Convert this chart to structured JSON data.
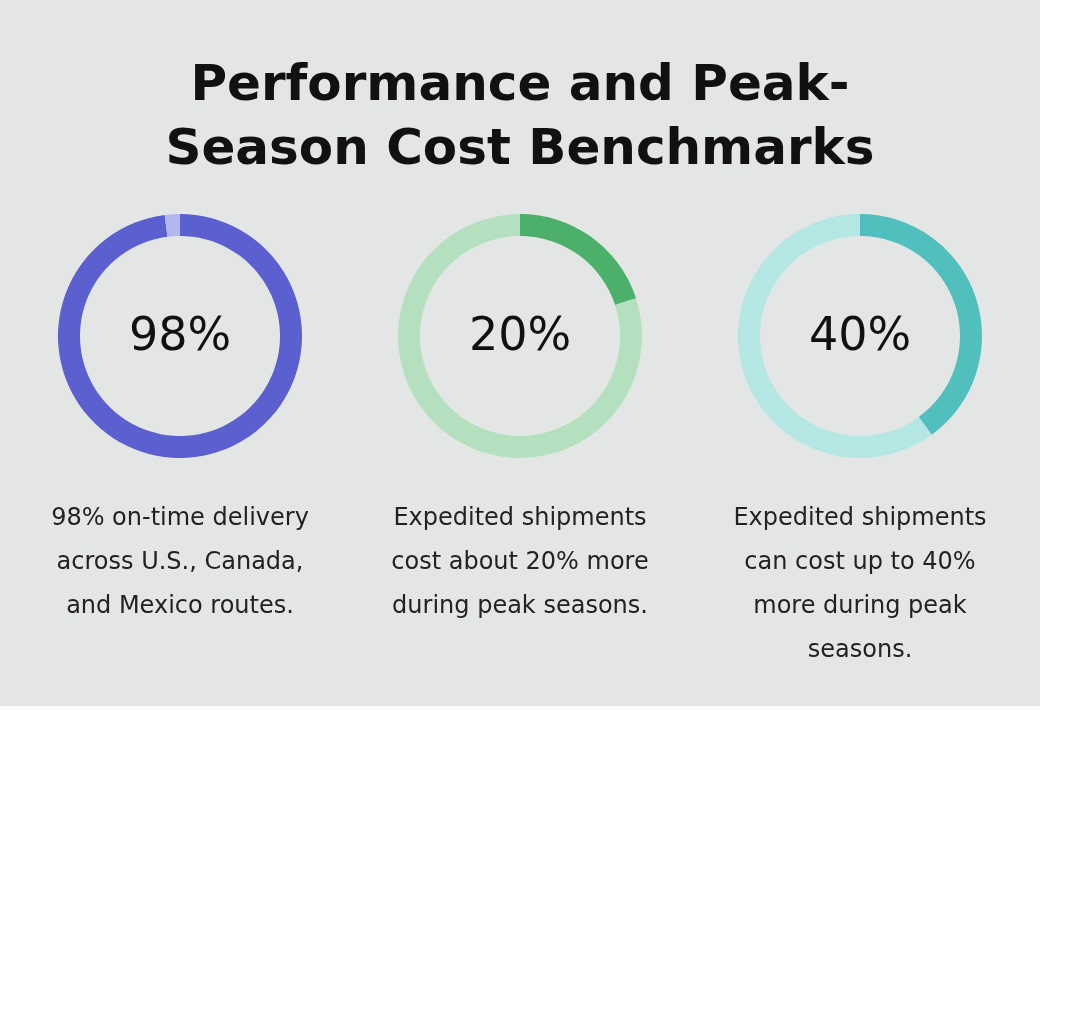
{
  "chart_data": [
    {
      "type": "donut",
      "title": "Performance and Peak-Season Cost Benchmarks",
      "categories": [
        null,
        null
      ],
      "values": [
        98,
        2
      ],
      "colors": [
        "#5b5fcf",
        "#b4b6ee"
      ],
      "value_labels": [
        "98%",
        null
      ],
      "annotations": [
        "98% on-time delivery across U.S., Canada, and Mexico routes."
      ]
    },
    {
      "type": "donut",
      "categories": [
        null,
        null
      ],
      "values": [
        20,
        80
      ],
      "colors": [
        "#4caf6a",
        "#b5e0c0"
      ],
      "value_labels": [
        "20%",
        null
      ],
      "annotations": [
        "Expedited shipments cost about 20% more during peak seasons."
      ]
    },
    {
      "type": "donut",
      "categories": [
        null,
        null
      ],
      "values": [
        40,
        60
      ],
      "colors": [
        "#52bfbf",
        "#b4e6e4"
      ],
      "value_labels": [
        "40%",
        null
      ],
      "annotations": [
        "Expedited shipments can cost up to 40% more during peak seasons."
      ]
    }
  ]
}
